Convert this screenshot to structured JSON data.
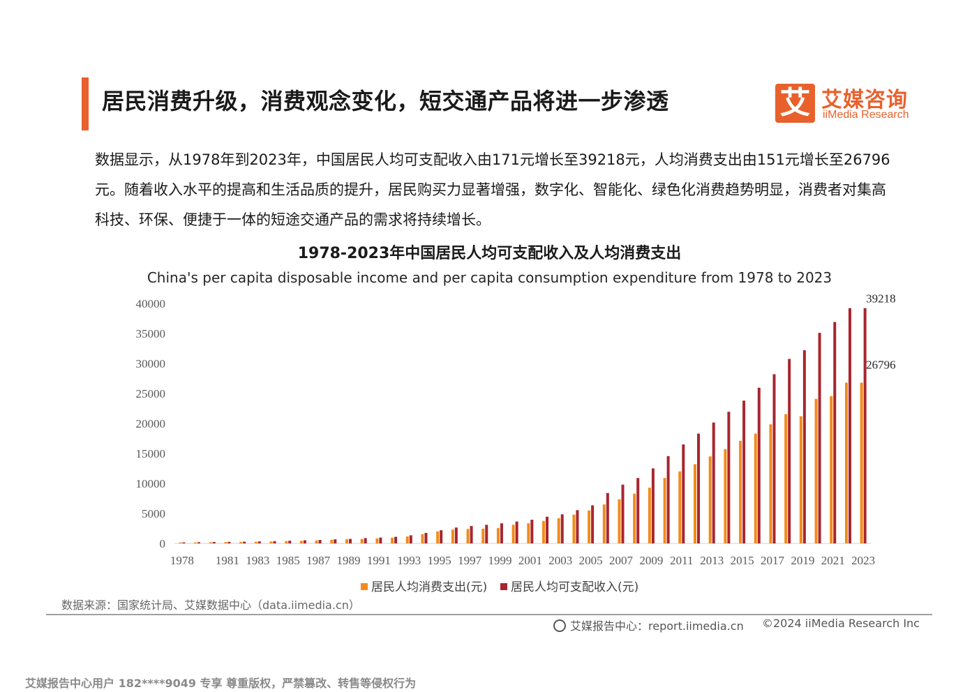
{
  "header": {
    "title": "居民消费升级，消费观念变化，短交通产品将进一步渗透",
    "logo_cn": "艾媒咨询",
    "logo_en": "iiMedia Research",
    "logo_mark": "艾"
  },
  "intro": "数据显示，从1978年到2023年，中国居民人均可支配收入由171元增长至39218元，人均消费支出由151元增长至26796元。随着收入水平的提高和生活品质的提升，居民购买力显著增强，数字化、智能化、绿色化消费趋势明显，消费者对集高科技、环保、便捷于一体的短途交通产品的需求将持续增长。",
  "chart_data": {
    "type": "bar",
    "title": "1978-2023年中国居民人均可支配收入及人均消费支出",
    "subtitle": "China's per capita disposable income and per capita consumption expenditure from 1978 to 2023",
    "categories": [
      "1978",
      "1979",
      "1980",
      "1981",
      "1982",
      "1983",
      "1984",
      "1985",
      "1986",
      "1987",
      "1988",
      "1989",
      "1990",
      "1991",
      "1992",
      "1993",
      "1994",
      "1995",
      "1996",
      "1997",
      "1998",
      "1999",
      "2000",
      "2001",
      "2002",
      "2003",
      "2004",
      "2005",
      "2006",
      "2007",
      "2008",
      "2009",
      "2010",
      "2011",
      "2012",
      "2013",
      "2014",
      "2015",
      "2016",
      "2017",
      "2018",
      "2019",
      "2020",
      "2021",
      "2022",
      "2023"
    ],
    "tick_labels": [
      "1978",
      "1981",
      "1983",
      "1985",
      "1987",
      "1989",
      "1991",
      "1993",
      "1995",
      "1997",
      "1999",
      "2001",
      "2003",
      "2005",
      "2007",
      "2009",
      "2011",
      "2013",
      "2015",
      "2017",
      "2019",
      "2021",
      "2023"
    ],
    "series": [
      {
        "name": "居民人均消费支出(元)",
        "color": "#f28b1c",
        "values": [
          151,
          170,
          196,
          223,
          250,
          280,
          320,
          390,
          440,
          500,
          610,
          680,
          740,
          840,
          960,
          1160,
          1550,
          2000,
          2300,
          2400,
          2450,
          2550,
          3100,
          3350,
          3750,
          4200,
          4800,
          5500,
          6500,
          7350,
          8300,
          9300,
          10900,
          12000,
          13200,
          14500,
          15700,
          17100,
          18300,
          19850,
          21550,
          21200,
          24100,
          24550,
          26796,
          26796
        ]
      },
      {
        "name": "居民人均可支配收入(元)",
        "color": "#a8262f",
        "values": [
          171,
          200,
          230,
          260,
          290,
          330,
          380,
          450,
          520,
          580,
          680,
          750,
          880,
          980,
          1100,
          1350,
          1750,
          2200,
          2650,
          2900,
          3100,
          3350,
          3650,
          3950,
          4450,
          4850,
          5550,
          6350,
          8400,
          9800,
          10900,
          12500,
          14550,
          16500,
          18300,
          20150,
          21950,
          23800,
          25950,
          28200,
          30750,
          32200,
          35100,
          36900,
          39218,
          39218
        ]
      }
    ],
    "data_labels": [
      "39218",
      "26796"
    ],
    "yticks": [
      "0",
      "5000",
      "10000",
      "15000",
      "20000",
      "25000",
      "30000",
      "35000",
      "40000"
    ],
    "ylim": [
      0,
      40000
    ],
    "legend_position": "bottom"
  },
  "source": "数据来源：国家统计局、艾媒数据中心（data.iimedia.cn）",
  "footer": {
    "center": "艾媒报告中心：report.iimedia.cn",
    "right": "©2024  iiMedia Research  Inc"
  },
  "watermark": "艾媒报告中心用户 182****9049 专享 尊重版权，严禁篡改、转售等侵权行为"
}
